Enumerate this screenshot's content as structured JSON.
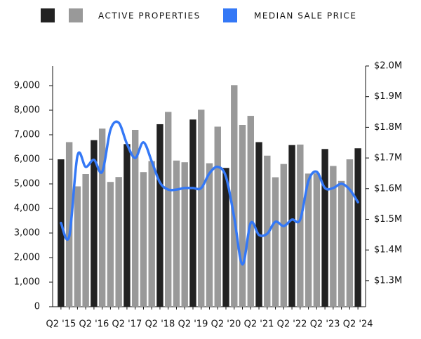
{
  "chart_data": {
    "type": "bar_line",
    "categories": [
      "Q2 '15",
      null,
      null,
      null,
      "Q2 '16",
      null,
      null,
      null,
      "Q2 '17",
      null,
      null,
      null,
      "Q2 '18",
      null,
      null,
      null,
      "Q2 '19",
      null,
      null,
      null,
      "Q2 '20",
      null,
      null,
      null,
      "Q2 '21",
      null,
      null,
      null,
      "Q2 '22",
      null,
      null,
      null,
      "Q2 '23",
      null,
      null,
      null,
      "Q2 '24"
    ],
    "series": [
      {
        "name": "ACTIVE PROPERTIES",
        "type": "bar",
        "legend_colors": [
          "#222222",
          "#999999"
        ],
        "colors": [
          "#222222",
          "#999999",
          "#999999",
          "#999999",
          "#222222",
          "#999999",
          "#999999",
          "#999999",
          "#222222",
          "#999999",
          "#999999",
          "#999999",
          "#222222",
          "#999999",
          "#999999",
          "#999999",
          "#222222",
          "#999999",
          "#999999",
          "#999999",
          "#222222",
          "#999999",
          "#999999",
          "#999999",
          "#222222",
          "#999999",
          "#999999",
          "#999999",
          "#222222",
          "#999999",
          "#999999",
          "#999999",
          "#222222",
          "#999999",
          "#999999",
          "#999999",
          "#222222"
        ],
        "values": [
          6000,
          6700,
          4900,
          5400,
          6780,
          7250,
          5080,
          5280,
          6620,
          7200,
          5480,
          5930,
          7430,
          7930,
          5950,
          5880,
          7620,
          8020,
          5840,
          7330,
          5650,
          9020,
          7400,
          7770,
          6700,
          6150,
          5270,
          5810,
          6580,
          6600,
          5420,
          5430,
          6420,
          5730,
          5120,
          6000,
          6450
        ]
      },
      {
        "name": "MEDIAN SALE PRICE",
        "type": "line",
        "axis": "y2",
        "color": "#3478f6",
        "values": [
          1488000,
          1444000,
          1707000,
          1671000,
          1694000,
          1655000,
          1792000,
          1815000,
          1746000,
          1700000,
          1751000,
          1689000,
          1620000,
          1597000,
          1597000,
          1602000,
          1602000,
          1602000,
          1650000,
          1671000,
          1639000,
          1506000,
          1353000,
          1488000,
          1449000,
          1453000,
          1492000,
          1478000,
          1499000,
          1499000,
          1625000,
          1655000,
          1602000,
          1602000,
          1616000,
          1597000,
          1556000
        ]
      }
    ],
    "ylim": [
      0,
      9800
    ],
    "yticks": [
      0,
      {
        "value": 1000,
        "label": "1,000"
      },
      {
        "value": 2000,
        "label": "2,000"
      },
      {
        "value": 3000,
        "label": "3,000"
      },
      {
        "value": 4000,
        "label": "4,000"
      },
      {
        "value": 5000,
        "label": "5,000"
      },
      {
        "value": 6000,
        "label": "6,000"
      },
      {
        "value": 7000,
        "label": "7,000"
      },
      {
        "value": 8000,
        "label": "8,000"
      },
      {
        "value": 9000,
        "label": "9,000"
      }
    ],
    "y2lim": [
      1215000,
      2000000
    ],
    "y2ticks": [
      {
        "value": 1300000,
        "label": "$1.3M"
      },
      {
        "value": 1400000,
        "label": "$1.4M"
      },
      {
        "value": 1500000,
        "label": "$1.5M"
      },
      {
        "value": 1600000,
        "label": "$1.6M"
      },
      {
        "value": 1700000,
        "label": "$1.7M"
      },
      {
        "value": 1800000,
        "label": "$1.8M"
      },
      {
        "value": 1900000,
        "label": "$1.9M"
      },
      {
        "value": 2000000,
        "label": "$2.0M"
      }
    ],
    "legend": "top"
  }
}
